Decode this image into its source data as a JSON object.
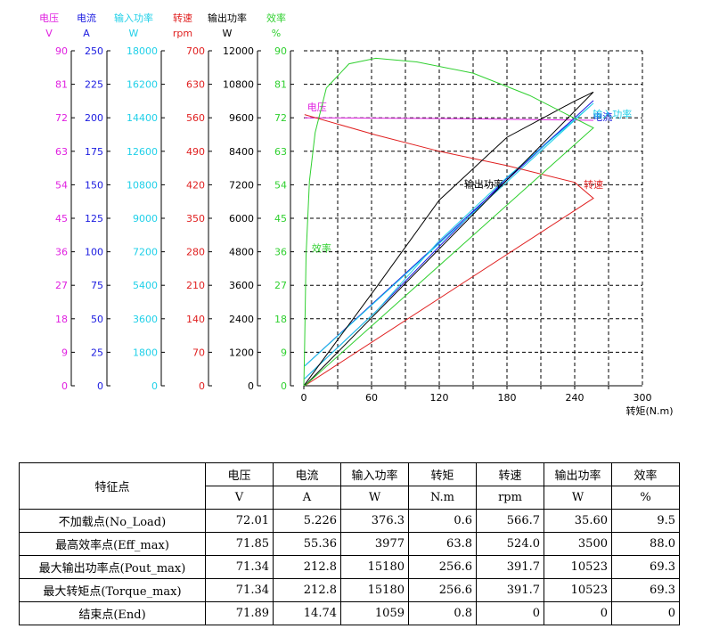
{
  "chart_data": {
    "type": "line",
    "xlabel": "转矩(N.m)",
    "xlim": [
      0,
      300
    ],
    "x_ticks": [
      "0",
      "60",
      "120",
      "180",
      "240",
      "300"
    ],
    "grid": true,
    "axes": [
      {
        "name": "电压",
        "unit": "V",
        "color": "#e020e0",
        "ticks": [
          "0",
          "9",
          "18",
          "27",
          "36",
          "45",
          "54",
          "63",
          "72",
          "81",
          "90"
        ]
      },
      {
        "name": "电流",
        "unit": "A",
        "color": "#1a1ae0",
        "ticks": [
          "0",
          "25",
          "50",
          "75",
          "100",
          "125",
          "150",
          "175",
          "200",
          "225",
          "250"
        ]
      },
      {
        "name": "输入功率",
        "unit": "W",
        "color": "#20d0e8",
        "ticks": [
          "0",
          "1800",
          "3600",
          "5400",
          "7200",
          "9000",
          "10800",
          "12600",
          "14400",
          "16200",
          "18000"
        ]
      },
      {
        "name": "转速",
        "unit": "rpm",
        "color": "#e02020",
        "ticks": [
          "0",
          "70",
          "140",
          "210",
          "280",
          "350",
          "420",
          "490",
          "560",
          "630",
          "700"
        ]
      },
      {
        "name": "输出功率",
        "unit": "W",
        "color": "#000000",
        "ticks": [
          "0",
          "1200",
          "2400",
          "3600",
          "4800",
          "6000",
          "7200",
          "8400",
          "9600",
          "10800",
          "12000"
        ]
      },
      {
        "name": "效率",
        "unit": "%",
        "color": "#30d030",
        "ticks": [
          "0",
          "9",
          "18",
          "27",
          "36",
          "45",
          "54",
          "63",
          "72",
          "81",
          "90"
        ]
      }
    ],
    "series": [
      {
        "name": "电压",
        "axis": 0,
        "color": "#e020e0",
        "label_pos": [
          3,
          74
        ],
        "x": [
          0.6,
          60,
          120,
          180,
          240,
          256.6
        ],
        "y": [
          72.01,
          71.9,
          71.8,
          71.6,
          71.4,
          71.34
        ]
      },
      {
        "name": "电流",
        "axis": 1,
        "color": "#1a1ae0",
        "label_pos": [
          256,
          198
        ],
        "x": [
          0.6,
          63.8,
          120,
          180,
          240,
          256.6,
          0.8
        ],
        "y": [
          5.226,
          55.36,
          104,
          155,
          200,
          212.8,
          14.74
        ]
      },
      {
        "name": "输入功率",
        "axis": 2,
        "color": "#20d0e8",
        "label_pos": [
          256,
          14400
        ],
        "x": [
          0.6,
          63.8,
          120,
          180,
          240,
          256.6,
          0.8
        ],
        "y": [
          376.3,
          3977,
          7800,
          11200,
          14300,
          15180,
          1059
        ]
      },
      {
        "name": "转速",
        "axis": 3,
        "color": "#e02020",
        "label_pos": [
          248,
          413
        ],
        "x": [
          0.6,
          63.8,
          120,
          180,
          240,
          256.6,
          0.8
        ],
        "y": [
          566.7,
          524,
          490,
          460,
          425,
          391.7,
          0
        ]
      },
      {
        "name": "输出功率",
        "axis": 4,
        "color": "#000000",
        "label_pos": [
          142,
          7100
        ],
        "x": [
          0.6,
          63.8,
          120,
          180,
          240,
          256.6,
          0.8
        ],
        "y": [
          35.6,
          3500,
          6650,
          8900,
          10200,
          10523,
          0
        ]
      },
      {
        "name": "效率",
        "axis": 5,
        "color": "#30d030",
        "label_pos": [
          7,
          36
        ],
        "x": [
          0,
          0.6,
          2,
          5,
          10,
          20,
          40,
          63.8,
          100,
          150,
          200,
          256.6,
          0.8
        ],
        "y": [
          0,
          9.5,
          35,
          55,
          68,
          80,
          86.5,
          88,
          87,
          84,
          78,
          69.3,
          0
        ]
      }
    ]
  },
  "table": {
    "header_feature": "特征点",
    "columns": [
      {
        "name": "电压",
        "unit": "V"
      },
      {
        "name": "电流",
        "unit": "A"
      },
      {
        "name": "输入功率",
        "unit": "W"
      },
      {
        "name": "转矩",
        "unit": "N.m"
      },
      {
        "name": "转速",
        "unit": "rpm"
      },
      {
        "name": "输出功率",
        "unit": "W"
      },
      {
        "name": "效率",
        "unit": "%"
      }
    ],
    "rows": [
      {
        "label": "不加载点(No_Load)",
        "values": [
          "72.01",
          "5.226",
          "376.3",
          "0.6",
          "566.7",
          "35.60",
          "9.5"
        ]
      },
      {
        "label": "最高效率点(Eff_max)",
        "values": [
          "71.85",
          "55.36",
          "3977",
          "63.8",
          "524.0",
          "3500",
          "88.0"
        ]
      },
      {
        "label": "最大输出功率点(Pout_max)",
        "values": [
          "71.34",
          "212.8",
          "15180",
          "256.6",
          "391.7",
          "10523",
          "69.3"
        ]
      },
      {
        "label": "最大转矩点(Torque_max)",
        "values": [
          "71.34",
          "212.8",
          "15180",
          "256.6",
          "391.7",
          "10523",
          "69.3"
        ]
      },
      {
        "label": "结束点(End)",
        "values": [
          "71.89",
          "14.74",
          "1059",
          "0.8",
          "0",
          "0",
          "0"
        ]
      }
    ]
  }
}
